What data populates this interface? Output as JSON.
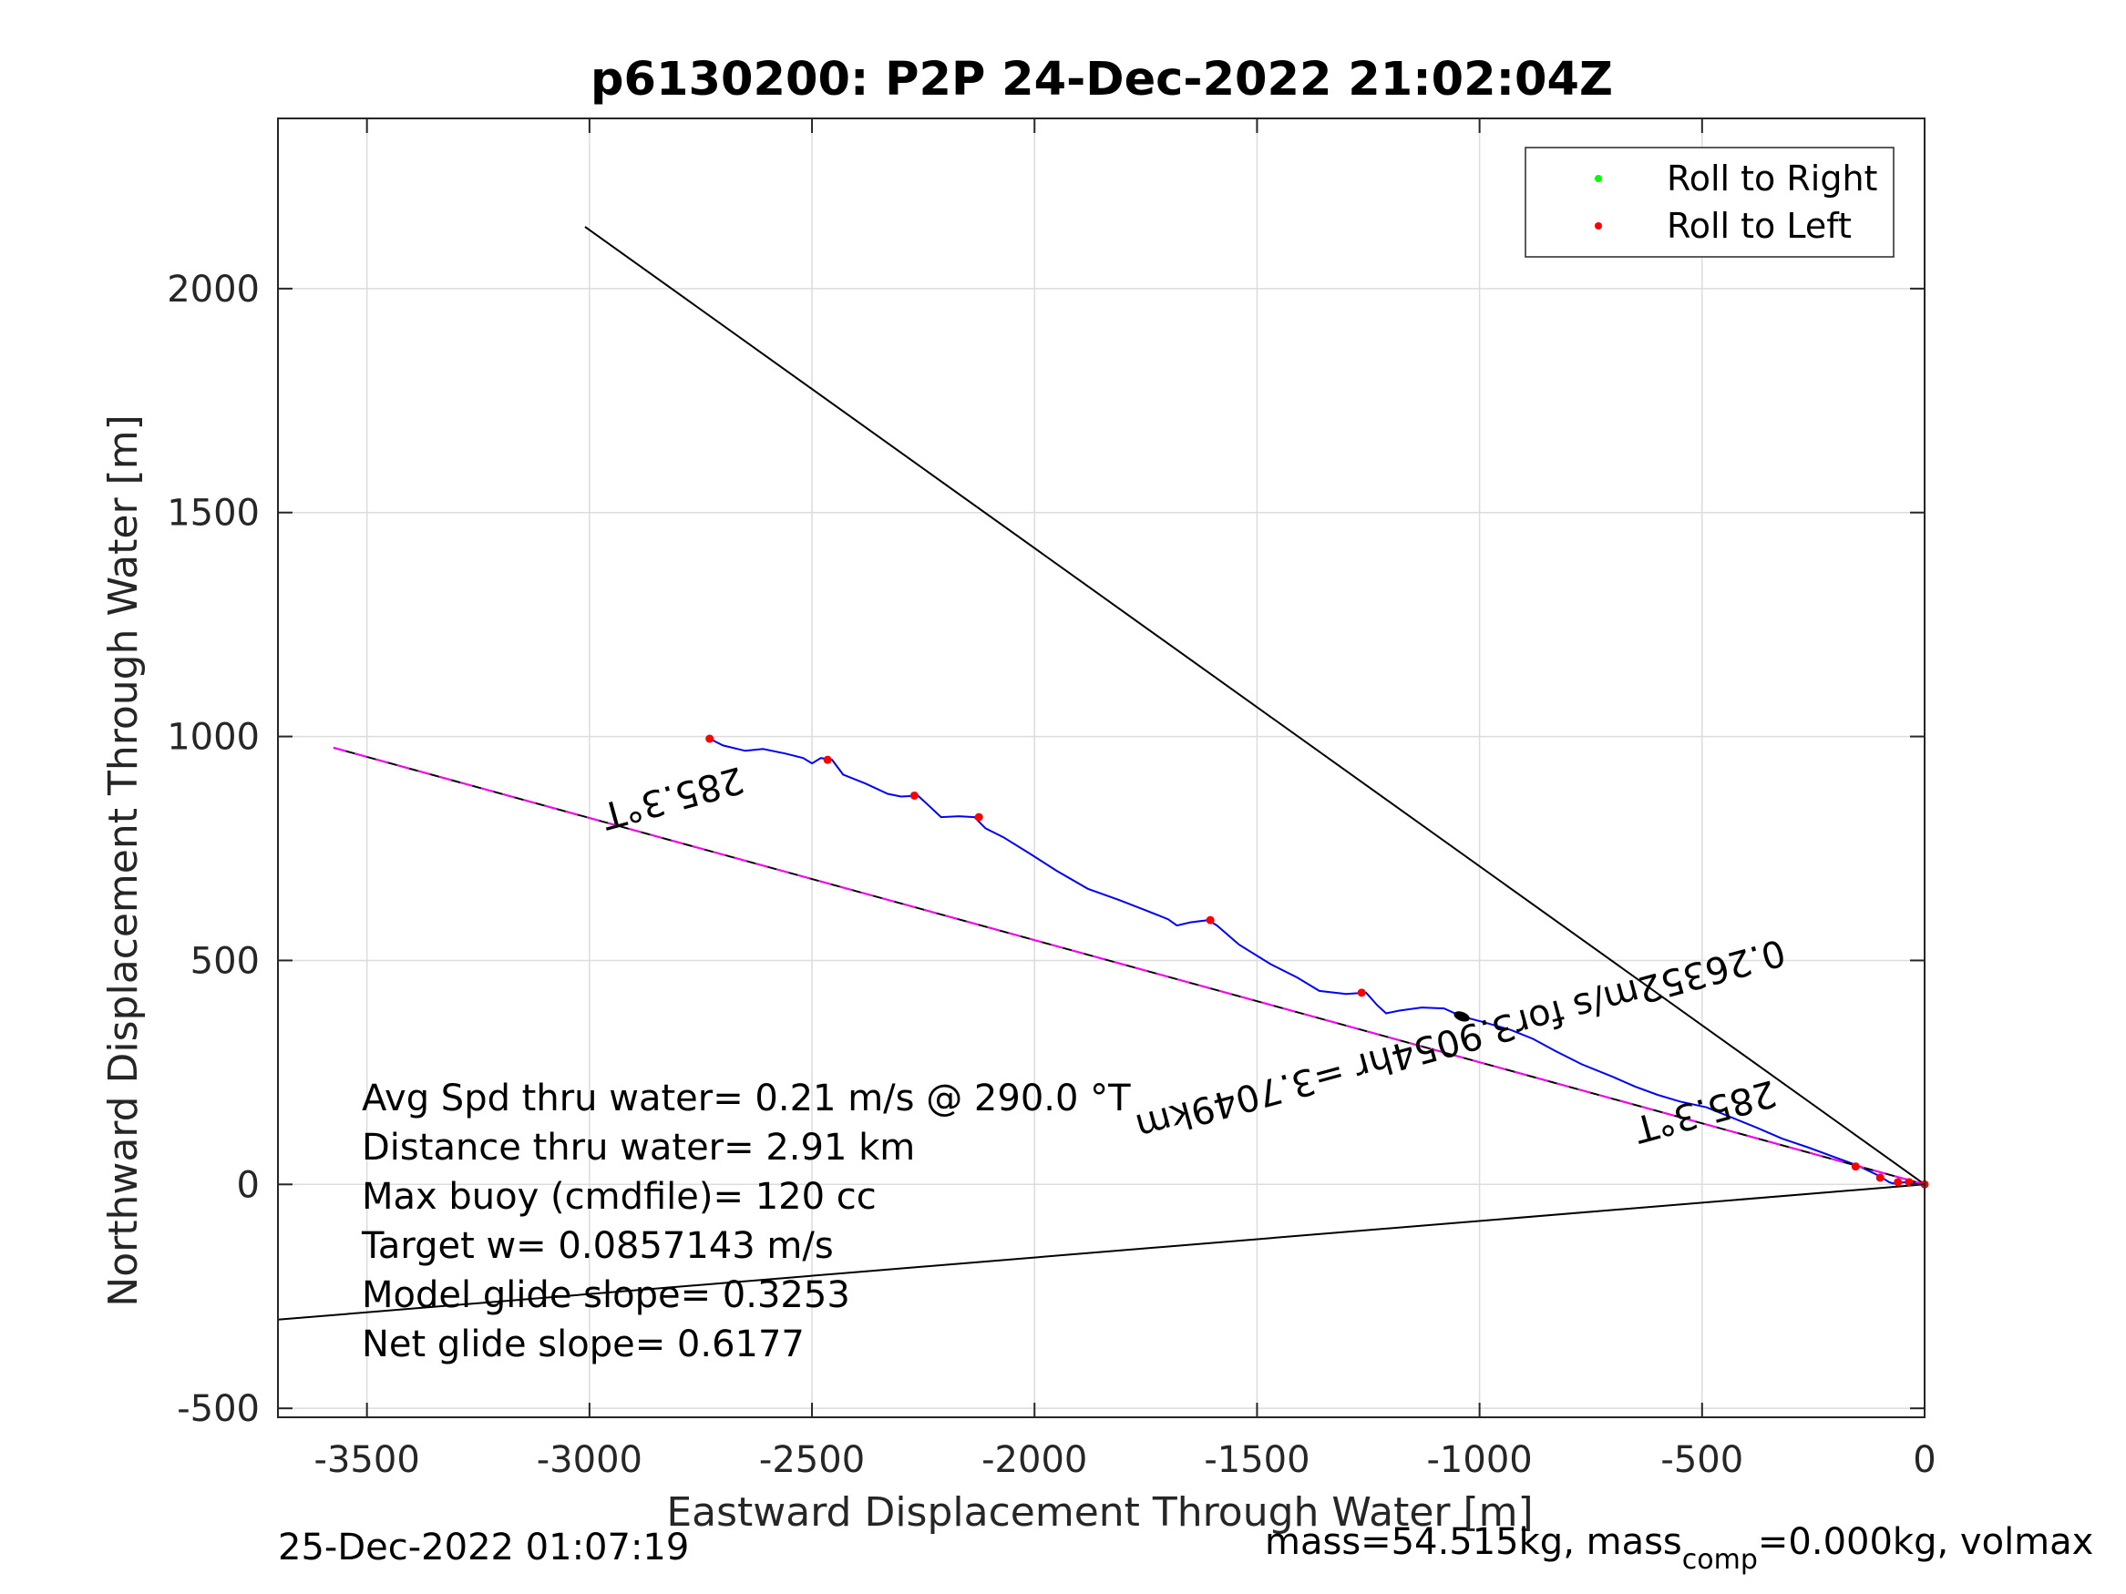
{
  "chart_data": {
    "type": "line",
    "title": "p6130200: P2P 24-Dec-2022 21:02:04Z",
    "xlabel": "Eastward Displacement Through Water [m]",
    "ylabel": "Northward Displacement Through Water [m]",
    "xlim": [
      -3700,
      0
    ],
    "ylim": [
      -520,
      2380
    ],
    "x_ticks": [
      -3500,
      -3000,
      -2500,
      -2000,
      -1500,
      -1000,
      -500,
      0
    ],
    "x_tick_labels": [
      "-3500",
      "-3000",
      "-2500",
      "-2000",
      "-1500",
      "-1000",
      "-500",
      "0"
    ],
    "y_ticks": [
      -500,
      0,
      500,
      1000,
      1500,
      2000
    ],
    "y_tick_labels": [
      "-500",
      "0",
      "500",
      "1000",
      "1500",
      "2000"
    ],
    "grid": true,
    "legend_position": "top-right",
    "legend": [
      {
        "label": "Roll to Right",
        "color": "#00ff00"
      },
      {
        "label": "Roll to Left",
        "color": "#ff0000"
      }
    ],
    "series": [
      {
        "kind": "track",
        "color": "#0000ff",
        "points": [
          [
            -2730,
            995
          ],
          [
            -2700,
            980
          ],
          [
            -2650,
            968
          ],
          [
            -2610,
            972
          ],
          [
            -2560,
            962
          ],
          [
            -2520,
            952
          ],
          [
            -2500,
            940
          ],
          [
            -2480,
            952
          ],
          [
            -2455,
            948
          ],
          [
            -2430,
            915
          ],
          [
            -2380,
            895
          ],
          [
            -2330,
            872
          ],
          [
            -2300,
            866
          ],
          [
            -2262,
            868
          ],
          [
            -2240,
            848
          ],
          [
            -2210,
            820
          ],
          [
            -2170,
            822
          ],
          [
            -2135,
            820
          ],
          [
            -2110,
            795
          ],
          [
            -2070,
            775
          ],
          [
            -2010,
            738
          ],
          [
            -1950,
            700
          ],
          [
            -1880,
            660
          ],
          [
            -1810,
            635
          ],
          [
            -1750,
            612
          ],
          [
            -1700,
            592
          ],
          [
            -1680,
            578
          ],
          [
            -1650,
            585
          ],
          [
            -1610,
            590
          ],
          [
            -1590,
            578
          ],
          [
            -1540,
            535
          ],
          [
            -1470,
            492
          ],
          [
            -1410,
            462
          ],
          [
            -1360,
            432
          ],
          [
            -1300,
            425
          ],
          [
            -1255,
            428
          ],
          [
            -1230,
            400
          ],
          [
            -1210,
            382
          ],
          [
            -1180,
            388
          ],
          [
            -1130,
            395
          ],
          [
            -1080,
            393
          ],
          [
            -1040,
            375
          ],
          [
            -990,
            362
          ],
          [
            -930,
            345
          ],
          [
            -880,
            325
          ],
          [
            -830,
            298
          ],
          [
            -770,
            268
          ],
          [
            -700,
            240
          ],
          [
            -650,
            218
          ],
          [
            -600,
            200
          ],
          [
            -550,
            185
          ],
          [
            -490,
            172
          ],
          [
            -440,
            152
          ],
          [
            -380,
            128
          ],
          [
            -320,
            102
          ],
          [
            -260,
            82
          ],
          [
            -200,
            60
          ],
          [
            -150,
            42
          ],
          [
            -100,
            18
          ],
          [
            -80,
            5
          ],
          [
            -70,
            2
          ],
          [
            -40,
            5
          ],
          [
            0,
            0
          ]
        ]
      },
      {
        "kind": "line",
        "color": "#000000",
        "points": [
          [
            -3010,
            2138
          ],
          [
            0,
            0
          ]
        ]
      },
      {
        "kind": "line",
        "color": "#000000",
        "points": [
          [
            -3700,
            -302
          ],
          [
            0,
            0
          ]
        ]
      },
      {
        "kind": "line",
        "color": "#000000",
        "dashed_overlay": "#ff00ff",
        "points": [
          [
            -3575,
            975
          ],
          [
            0,
            0
          ]
        ]
      }
    ],
    "roll_left_points": [
      [
        -2730,
        995
      ],
      [
        -2465,
        948
      ],
      [
        -2270,
        868
      ],
      [
        -2125,
        820
      ],
      [
        -1605,
        590
      ],
      [
        -1265,
        428
      ],
      [
        -155,
        40
      ],
      [
        -100,
        15
      ],
      [
        -60,
        5
      ],
      [
        -35,
        5
      ],
      [
        0,
        0
      ]
    ],
    "black_marker": [
      -1040,
      375
    ],
    "annotations": [
      {
        "text": "285.3°T",
        "x": -2820,
        "y": 890,
        "angle": 164.7
      },
      {
        "text": "285.3°T",
        "x": -500,
        "y": 190,
        "angle": 164.7
      },
      {
        "text": "0.26352m/s for3.9054hr =3.7049km",
        "x": -1050,
        "y": 350,
        "angle": 164.7
      }
    ],
    "stats": [
      "Avg Spd thru water=  0.21 m/s @ 290.0 °T",
      "Distance thru water=  2.91 km",
      "Max buoy (cmdfile)= 120 cc",
      "Target w= 0.0857143 m/s",
      "Model glide slope= 0.3253",
      "Net glide slope= 0.6177"
    ]
  },
  "footer": {
    "left": "25-Dec-2022 01:07:19",
    "right_prefix": "mass=54.515kg, mass",
    "right_subscript": "comp",
    "right_suffix": "=0.000kg, volmax"
  }
}
